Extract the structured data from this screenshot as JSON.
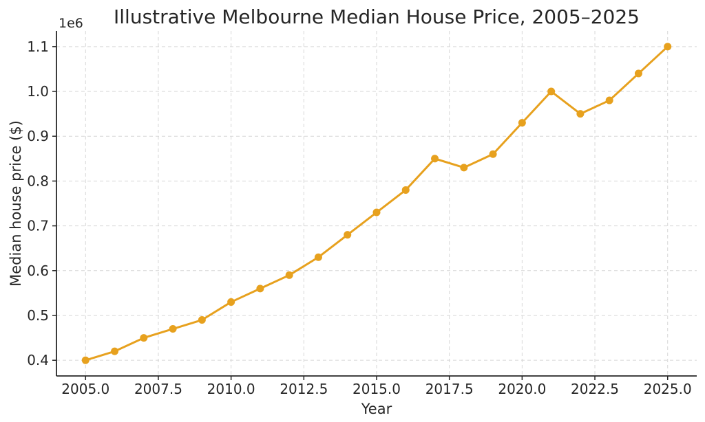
{
  "chart_data": {
    "type": "line",
    "title": "Illustrative Melbourne Median House Price, 2005–2025",
    "xlabel": "Year",
    "ylabel": "Median house price ($)",
    "y_offset_label": "1e6",
    "x": [
      2005,
      2006,
      2007,
      2008,
      2009,
      2010,
      2011,
      2012,
      2013,
      2014,
      2015,
      2016,
      2017,
      2018,
      2019,
      2020,
      2021,
      2022,
      2023,
      2024,
      2025
    ],
    "series": [
      {
        "name": "Median house price",
        "values": [
          400000,
          420000,
          450000,
          470000,
          490000,
          530000,
          560000,
          590000,
          630000,
          680000,
          730000,
          780000,
          850000,
          830000,
          860000,
          930000,
          1000000,
          950000,
          980000,
          1040000,
          1100000
        ]
      }
    ],
    "xlim": [
      2004,
      2026
    ],
    "ylim": [
      365000,
      1135000
    ],
    "xticks": [
      2005.0,
      2007.5,
      2010.0,
      2012.5,
      2015.0,
      2017.5,
      2020.0,
      2022.5,
      2025.0
    ],
    "xtick_labels": [
      "2005.0",
      "2007.5",
      "2010.0",
      "2012.5",
      "2015.0",
      "2017.5",
      "2020.0",
      "2022.5",
      "2025.0"
    ],
    "yticks": [
      400000,
      500000,
      600000,
      700000,
      800000,
      900000,
      1000000,
      1100000
    ],
    "ytick_labels": [
      "0.4",
      "0.5",
      "0.6",
      "0.7",
      "0.8",
      "0.9",
      "1.0",
      "1.1"
    ],
    "grid": true,
    "legend": false,
    "line_color": "#E7A11E",
    "marker": "circle",
    "background_color": "#FFFFFF",
    "grid_color": "#D6D6D6",
    "spine_color": "#262626",
    "text_color": "#262626"
  }
}
